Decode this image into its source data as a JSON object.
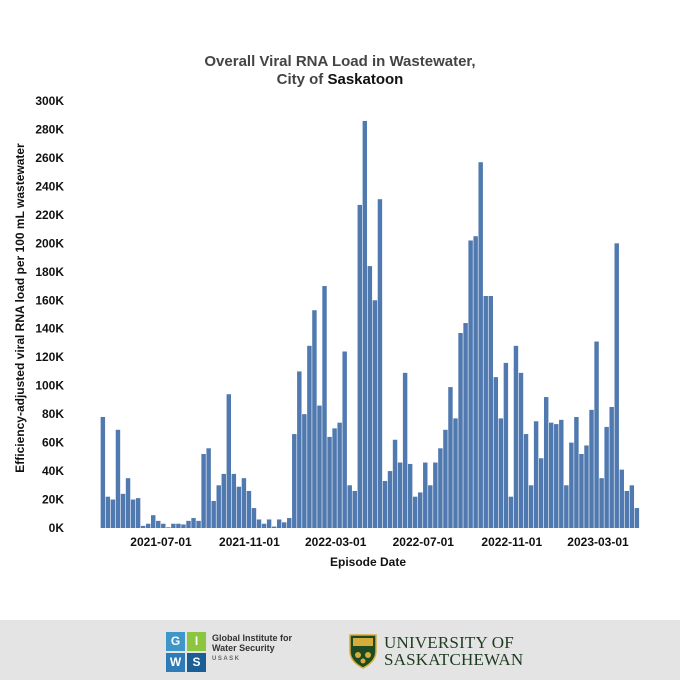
{
  "chart_data": {
    "type": "bar",
    "title_line1": "Overall Viral RNA Load in Wastewater,",
    "title_line2_prefix": "City of ",
    "title_line2_bold": "Saskatoon",
    "xlabel": "Episode Date",
    "ylabel": "Efficiency-adjusted viral RNA load per 100 mL wastewater",
    "ylim": [
      0,
      300000
    ],
    "y_ticks": [
      {
        "value": 0,
        "label": "0K"
      },
      {
        "value": 20000,
        "label": "20K"
      },
      {
        "value": 40000,
        "label": "40K"
      },
      {
        "value": 60000,
        "label": "60K"
      },
      {
        "value": 80000,
        "label": "80K"
      },
      {
        "value": 100000,
        "label": "100K"
      },
      {
        "value": 120000,
        "label": "120K"
      },
      {
        "value": 140000,
        "label": "140K"
      },
      {
        "value": 160000,
        "label": "160K"
      },
      {
        "value": 180000,
        "label": "180K"
      },
      {
        "value": 200000,
        "label": "200K"
      },
      {
        "value": 220000,
        "label": "220K"
      },
      {
        "value": 240000,
        "label": "240K"
      },
      {
        "value": 260000,
        "label": "260K"
      },
      {
        "value": 280000,
        "label": "280K"
      },
      {
        "value": 300000,
        "label": "300K"
      }
    ],
    "x_ticks": [
      "2021-07-01",
      "2021-11-01",
      "2022-03-01",
      "2022-07-01",
      "2022-11-01",
      "2023-03-01"
    ],
    "x_first": "2021-04-08",
    "x_last": "2023-04-28",
    "gap_after_index": 31,
    "grid": false,
    "color": "#5079b0",
    "values": [
      78000,
      22000,
      20000,
      69000,
      24000,
      35000,
      20000,
      21000,
      1500,
      3000,
      9000,
      5000,
      3000,
      500,
      3000,
      3000,
      2500,
      5000,
      7000,
      5000,
      52000,
      56000,
      19000,
      30000,
      38000,
      94000,
      38000,
      29000,
      35000,
      26000,
      14000,
      6000,
      3000,
      6000,
      1000,
      6000,
      4000,
      7000,
      66000,
      110000,
      80000,
      128000,
      153000,
      86000,
      170000,
      64000,
      70000,
      74000,
      124000,
      30000,
      26000,
      227000,
      286000,
      184000,
      160000,
      231000,
      33000,
      40000,
      62000,
      46000,
      109000,
      45000,
      22000,
      25000,
      46000,
      30000,
      46000,
      56000,
      69000,
      99000,
      77000,
      137000,
      144000,
      202000,
      205000,
      257000,
      163000,
      163000,
      106000,
      77000,
      116000,
      22000,
      128000,
      109000,
      66000,
      30000,
      75000,
      49000,
      92000,
      74000,
      73000,
      76000,
      30000,
      60000,
      78000,
      52000,
      58000,
      83000,
      131000,
      35000,
      71000,
      85000,
      200000,
      41000,
      26000,
      30000,
      14000
    ]
  },
  "footer": {
    "giws_letters": [
      "G",
      "I",
      "W",
      "S"
    ],
    "giws_line1": "Global Institute for",
    "giws_line2": "Water Security",
    "giws_sub": "USASK",
    "usask_line1": "UNIVERSITY OF",
    "usask_line2": "SASKATCHEWAN",
    "colors": {
      "giws_g": "#3f97c8",
      "giws_i": "#8cc63f",
      "giws_w": "#2e7bb8",
      "giws_s": "#1b5e96",
      "usask_green": "#1e4a22",
      "usask_gold": "#d6ac3b"
    }
  }
}
